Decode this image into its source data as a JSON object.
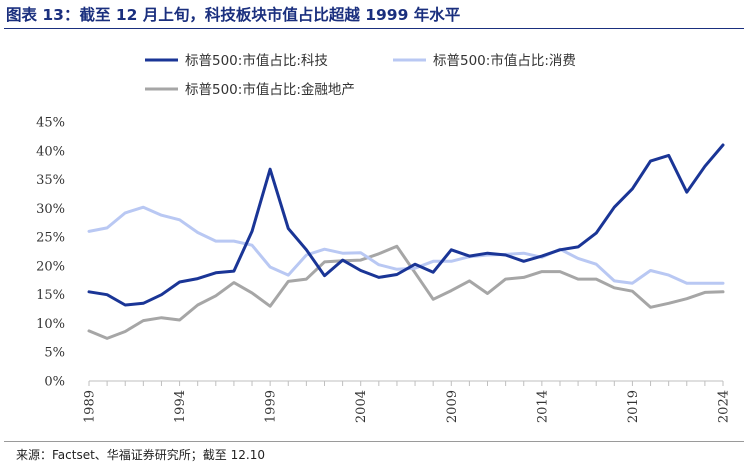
{
  "title": "图表 13：截至 12 月上旬，科技板块市值占比超越 1999 年水平",
  "source": "来源：Factset、华福证券研究所；截至 12.10",
  "chart_data": {
    "type": "line",
    "xlim": [
      1989,
      2024
    ],
    "ylim": [
      0,
      45
    ],
    "y_ticks": [
      "0%",
      "5%",
      "10%",
      "15%",
      "20%",
      "25%",
      "30%",
      "35%",
      "40%",
      "45%"
    ],
    "x_ticks": [
      "1989",
      "1994",
      "1999",
      "2004",
      "2009",
      "2014",
      "2019",
      "2024"
    ],
    "grid": false,
    "legend_position": "top",
    "series": [
      {
        "name": "标普500:市值占比:科技",
        "color": "#1a3596",
        "x": [
          1989,
          1990,
          1991,
          1992,
          1993,
          1994,
          1995,
          1996,
          1997,
          1998,
          1999,
          2000,
          2001,
          2002,
          2003,
          2004,
          2005,
          2006,
          2007,
          2008,
          2009,
          2010,
          2011,
          2012,
          2013,
          2014,
          2015,
          2016,
          2017,
          2018,
          2019,
          2020,
          2021,
          2022,
          2023,
          2024
        ],
        "values": [
          15.5,
          15.0,
          13.2,
          13.5,
          15.0,
          17.2,
          17.8,
          18.8,
          19.1,
          26.0,
          36.8,
          26.5,
          22.8,
          18.3,
          21.0,
          19.2,
          18.0,
          18.5,
          20.3,
          18.9,
          22.8,
          21.7,
          22.2,
          21.9,
          20.8,
          21.7,
          22.8,
          23.3,
          25.7,
          30.2,
          33.4,
          38.2,
          39.2,
          32.8,
          37.3,
          41.0
        ]
      },
      {
        "name": "标普500:市值占比:消费",
        "color": "#b9c8f3",
        "x": [
          1989,
          1990,
          1991,
          1992,
          1993,
          1994,
          1995,
          1996,
          1997,
          1998,
          1999,
          2000,
          2001,
          2002,
          2003,
          2004,
          2005,
          2006,
          2007,
          2008,
          2009,
          2010,
          2011,
          2012,
          2013,
          2014,
          2015,
          2016,
          2017,
          2018,
          2019,
          2020,
          2021,
          2022,
          2023,
          2024
        ],
        "values": [
          26.0,
          26.6,
          29.2,
          30.2,
          28.8,
          28.0,
          25.8,
          24.3,
          24.3,
          23.6,
          19.8,
          18.4,
          21.9,
          22.9,
          22.2,
          22.3,
          20.2,
          19.4,
          19.6,
          20.8,
          20.8,
          21.6,
          21.9,
          22.0,
          22.2,
          21.5,
          22.9,
          21.3,
          20.3,
          17.4,
          17.0,
          19.2,
          18.4,
          17.0,
          17.0,
          17.0
        ]
      },
      {
        "name": "标普500:市值占比:金融地产",
        "color": "#a6a6a6",
        "x": [
          1989,
          1990,
          1991,
          1992,
          1993,
          1994,
          1995,
          1996,
          1997,
          1998,
          1999,
          2000,
          2001,
          2002,
          2003,
          2004,
          2005,
          2006,
          2007,
          2008,
          2009,
          2010,
          2011,
          2012,
          2013,
          2014,
          2015,
          2016,
          2017,
          2018,
          2019,
          2020,
          2021,
          2022,
          2023,
          2024
        ],
        "values": [
          8.7,
          7.4,
          8.6,
          10.5,
          11.0,
          10.6,
          13.2,
          14.8,
          17.1,
          15.3,
          13.0,
          17.3,
          17.7,
          20.7,
          20.9,
          21.0,
          22.1,
          23.4,
          18.8,
          14.2,
          15.7,
          17.4,
          15.2,
          17.7,
          18.0,
          19.0,
          19.0,
          17.7,
          17.7,
          16.2,
          15.6,
          12.8,
          13.5,
          14.3,
          15.4,
          15.5
        ]
      }
    ]
  }
}
